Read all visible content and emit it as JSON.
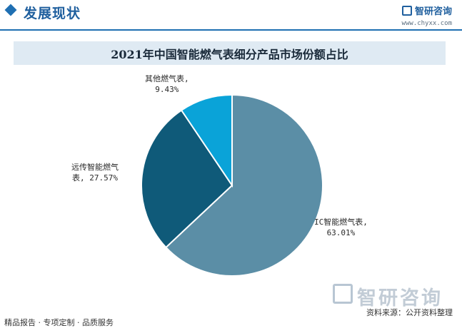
{
  "header": {
    "section_title": "发展现状",
    "brand_name": "智研咨询",
    "brand_url": "www.chyxx.com"
  },
  "watermark": "智研咨询",
  "chart_data": {
    "type": "pie",
    "title": "2021年中国智能燃气表细分产品市场份额占比",
    "slices": [
      {
        "label_line1": "IC智能燃气表,",
        "label_line2": "63.01%",
        "value": 63.01,
        "color": "#5b8ea6"
      },
      {
        "label_line1": "远传智能燃气",
        "label_line2": "表, 27.57%",
        "value": 27.57,
        "color": "#0f5a79"
      },
      {
        "label_line1": "其他燃气表,",
        "label_line2": "9.43%",
        "value": 9.43,
        "color": "#0aa3d8"
      }
    ]
  },
  "source": "资料来源：公开资料整理",
  "footer": "精品报告 · 专项定制 · 品质服务"
}
